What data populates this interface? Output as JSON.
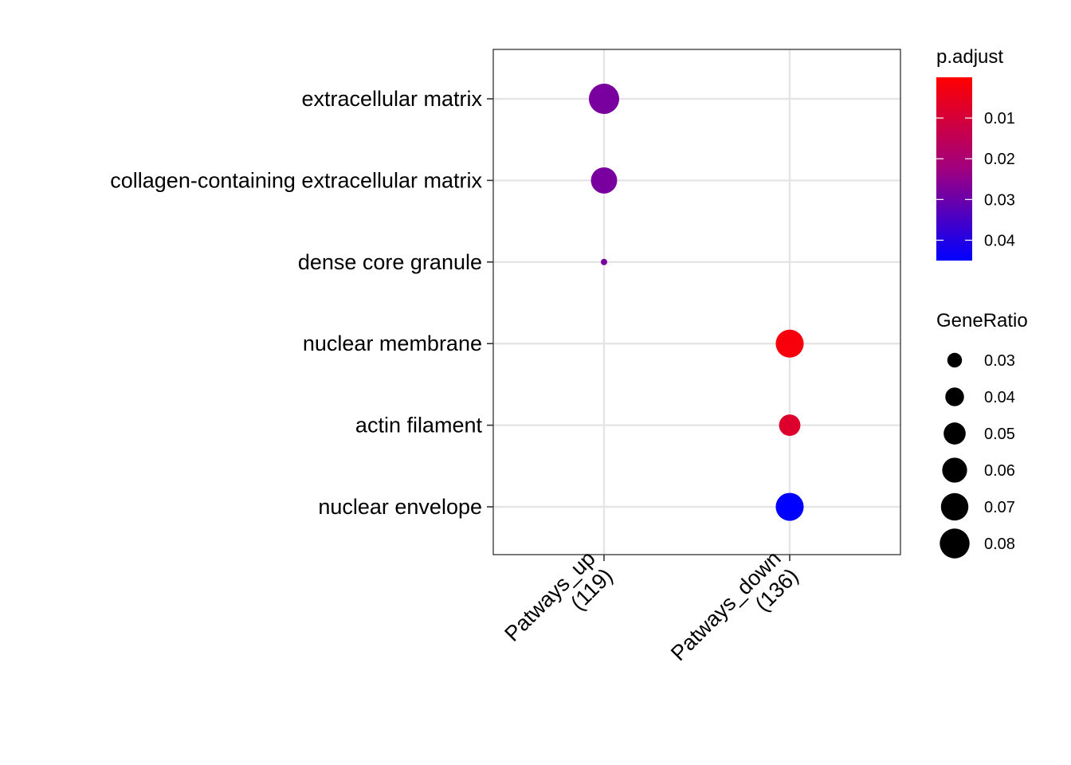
{
  "chart_data": {
    "type": "scatter",
    "categories_x": [
      "Patways_up\n(119)",
      "Patways_down\n(136)"
    ],
    "categories_y": [
      "extracellular matrix",
      "collagen-containing extracellular matrix",
      "dense core granule",
      "nuclear membrane",
      "actin filament",
      "nuclear envelope"
    ],
    "points": [
      {
        "x": "Patways_up\n(119)",
        "y": "extracellular matrix",
        "gene_ratio": 0.082,
        "p_adjust": 0.028
      },
      {
        "x": "Patways_up\n(119)",
        "y": "collagen-containing extracellular matrix",
        "gene_ratio": 0.065,
        "p_adjust": 0.028
      },
      {
        "x": "Patways_up\n(119)",
        "y": "dense core granule",
        "gene_ratio": 0.017,
        "p_adjust": 0.028
      },
      {
        "x": "Patways_down\n(136)",
        "y": "nuclear membrane",
        "gene_ratio": 0.072,
        "p_adjust": 0.002
      },
      {
        "x": "Patways_down\n(136)",
        "y": "actin filament",
        "gene_ratio": 0.048,
        "p_adjust": 0.008
      },
      {
        "x": "Patways_down\n(136)",
        "y": "nuclear envelope",
        "gene_ratio": 0.072,
        "p_adjust": 0.045
      }
    ],
    "color_legend": {
      "title": "p.adjust",
      "ticks": [
        0.01,
        0.02,
        0.03,
        0.04
      ],
      "tick_labels": [
        "0.01",
        "0.02",
        "0.03",
        "0.04"
      ],
      "range": [
        0.0,
        0.045
      ],
      "low_color": "#FF0000",
      "high_color": "#0000FF"
    },
    "size_legend": {
      "title": "GeneRatio",
      "values": [
        0.03,
        0.04,
        0.05,
        0.06,
        0.07,
        0.08
      ],
      "labels": [
        "0.03",
        "0.04",
        "0.05",
        "0.06",
        "0.07",
        "0.08"
      ]
    },
    "grid": true,
    "legend_position": "right"
  }
}
